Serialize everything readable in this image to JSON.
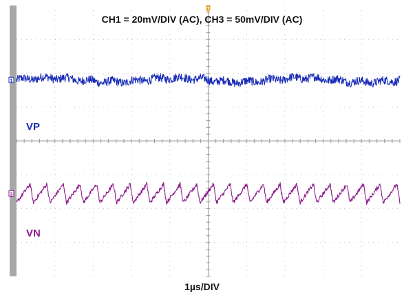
{
  "chart_data": {
    "type": "line",
    "title": "CH1 = 20mV/DIV (AC), CH3 = 50mV/DIV (AC)",
    "xlabel": "1µs/DIV",
    "ylabel": "",
    "x_divisions": 10,
    "y_divisions": 8,
    "grid": true,
    "series": [
      {
        "name": "VP",
        "channel_marker": "1",
        "scale": "20mV/DIV",
        "coupling": "AC",
        "offset_div": 1.8,
        "waveform": "noise",
        "noise_pp_div": 0.25,
        "color": "#1a2db8"
      },
      {
        "name": "VN",
        "channel_marker": "3",
        "scale": "50mV/DIV",
        "coupling": "AC",
        "offset_div": -1.55,
        "waveform": "sawtooth",
        "cycles": 23,
        "amplitude_pp_div": 0.55,
        "color": "#8c1a8c"
      }
    ],
    "trigger_marker": "T"
  }
}
